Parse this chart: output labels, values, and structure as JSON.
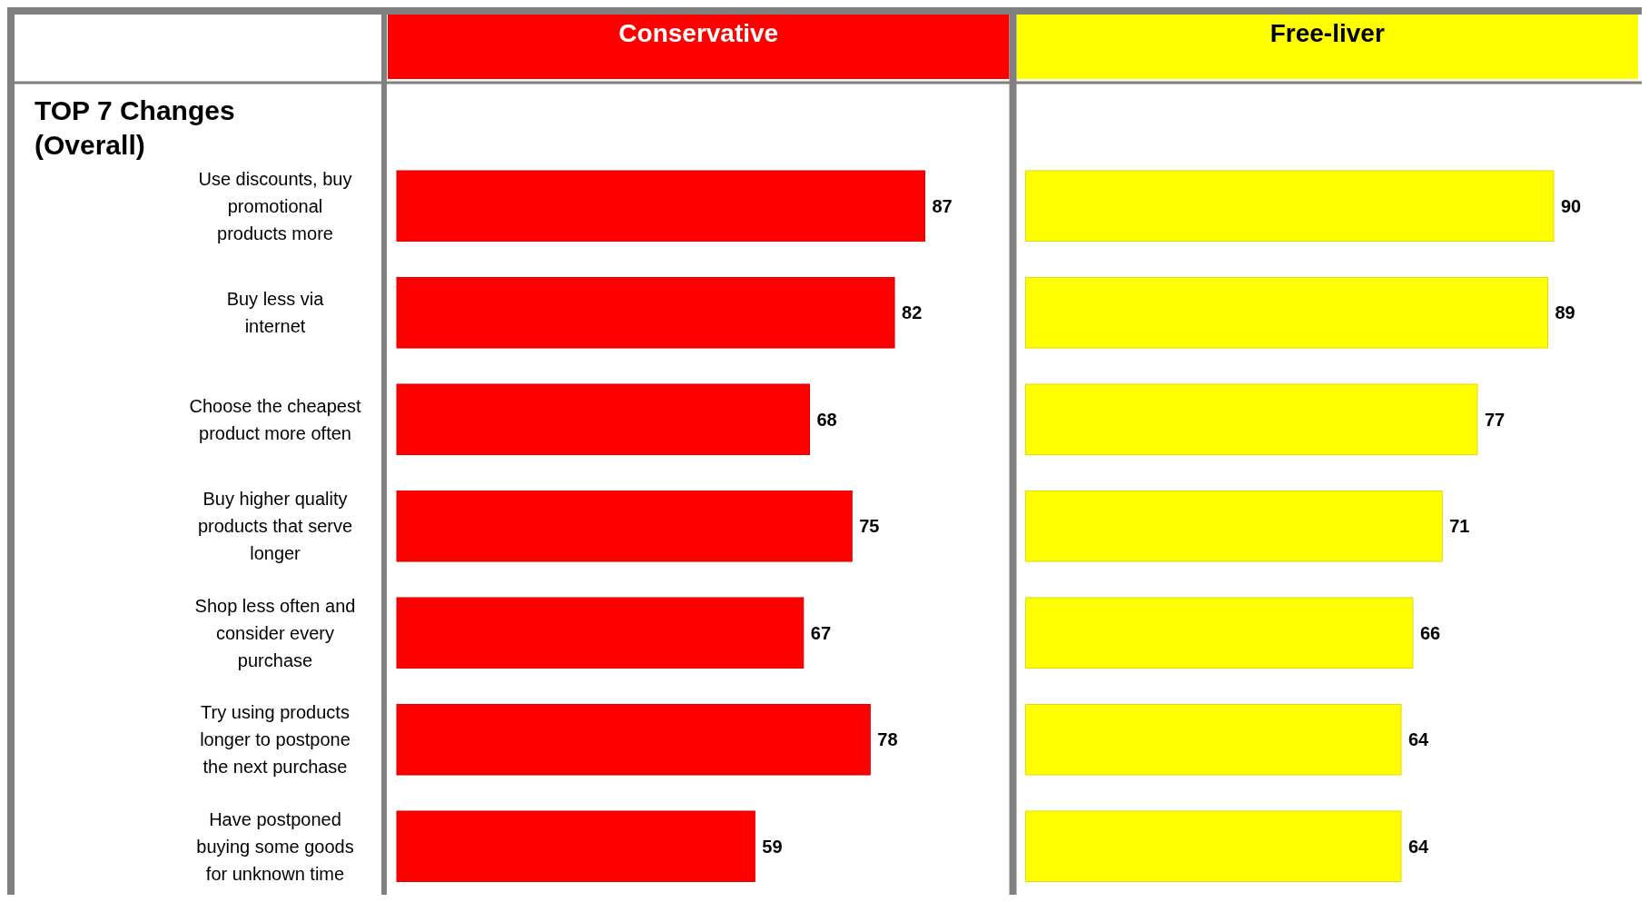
{
  "chart_data": [
    {
      "type": "bar",
      "orientation": "horizontal",
      "title": "Conservative",
      "ylabel": "TOP 7 Changes (Overall)",
      "categories": [
        "Use discounts, buy promotional products more",
        "Buy less via internet",
        "Choose the cheapest product more often",
        "Buy higher quality products that serve longer",
        "Shop less often and consider every purchase",
        "Try using products longer to postpone the next purchase",
        "Have postponed buying some goods for unknown time"
      ],
      "values": [
        87,
        82,
        68,
        75,
        67,
        78,
        59
      ],
      "color": "#ff0000",
      "data_labels": true
    },
    {
      "type": "bar",
      "orientation": "horizontal",
      "title": "Free-liver",
      "categories": [
        null,
        null,
        null,
        null,
        null,
        null,
        null
      ],
      "values": [
        90,
        89,
        77,
        71,
        66,
        64,
        64
      ],
      "color": "#ffff00",
      "data_labels": true
    }
  ]
}
